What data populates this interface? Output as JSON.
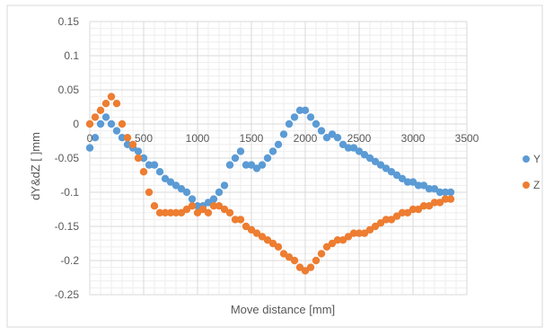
{
  "chart_data": {
    "type": "scatter",
    "xlabel": "Move distance [mm]",
    "ylabel": "dY&dZ [ ]mm",
    "xlim": [
      0,
      3500
    ],
    "ylim": [
      -0.25,
      0.15
    ],
    "x_ticks": [
      "0",
      "500",
      "1000",
      "1500",
      "2000",
      "2500",
      "3000",
      "3500"
    ],
    "y_ticks": [
      "0.15",
      "0.1",
      "0.05",
      "0",
      "-0.05",
      "-0.1",
      "-0.15",
      "-0.2",
      "-0.25"
    ],
    "x_tick_values": [
      0,
      500,
      1000,
      1500,
      2000,
      2500,
      3000,
      3500
    ],
    "y_tick_values": [
      0.15,
      0.1,
      0.05,
      0,
      -0.05,
      -0.1,
      -0.15,
      -0.2,
      -0.25
    ],
    "grid": true,
    "legend_position": "right",
    "series": [
      {
        "name": "Y",
        "color": "#5B9BD5",
        "x": [
          0,
          50,
          100,
          150,
          200,
          250,
          300,
          350,
          400,
          450,
          500,
          550,
          600,
          650,
          700,
          750,
          800,
          850,
          900,
          950,
          1000,
          1050,
          1100,
          1150,
          1200,
          1250,
          1300,
          1350,
          1400,
          1450,
          1500,
          1550,
          1600,
          1650,
          1700,
          1750,
          1800,
          1850,
          1900,
          1950,
          2000,
          2050,
          2100,
          2150,
          2200,
          2250,
          2300,
          2350,
          2400,
          2450,
          2500,
          2550,
          2600,
          2650,
          2700,
          2750,
          2800,
          2850,
          2900,
          2950,
          3000,
          3050,
          3100,
          3150,
          3200,
          3250,
          3300,
          3350
        ],
        "y": [
          -0.035,
          -0.02,
          0.0,
          0.01,
          0.0,
          -0.01,
          -0.02,
          -0.03,
          -0.035,
          -0.04,
          -0.05,
          -0.06,
          -0.06,
          -0.07,
          -0.08,
          -0.085,
          -0.09,
          -0.095,
          -0.1,
          -0.11,
          -0.12,
          -0.12,
          -0.115,
          -0.11,
          -0.1,
          -0.09,
          -0.06,
          -0.05,
          -0.04,
          -0.06,
          -0.06,
          -0.065,
          -0.06,
          -0.05,
          -0.04,
          -0.03,
          -0.015,
          0.0,
          0.01,
          0.02,
          0.02,
          0.01,
          0.0,
          -0.01,
          -0.02,
          -0.015,
          -0.02,
          -0.03,
          -0.035,
          -0.035,
          -0.04,
          -0.045,
          -0.05,
          -0.055,
          -0.06,
          -0.065,
          -0.07,
          -0.075,
          -0.08,
          -0.085,
          -0.085,
          -0.09,
          -0.09,
          -0.095,
          -0.095,
          -0.1,
          -0.1,
          -0.1
        ]
      },
      {
        "name": "Z",
        "color": "#ED7D31",
        "x": [
          0,
          50,
          100,
          150,
          200,
          250,
          300,
          350,
          400,
          450,
          500,
          550,
          600,
          650,
          700,
          750,
          800,
          850,
          900,
          950,
          1000,
          1050,
          1100,
          1150,
          1200,
          1250,
          1300,
          1350,
          1400,
          1450,
          1500,
          1550,
          1600,
          1650,
          1700,
          1750,
          1800,
          1850,
          1900,
          1950,
          2000,
          2050,
          2100,
          2150,
          2200,
          2250,
          2300,
          2350,
          2400,
          2450,
          2500,
          2550,
          2600,
          2650,
          2700,
          2750,
          2800,
          2850,
          2900,
          2950,
          3000,
          3050,
          3100,
          3150,
          3200,
          3250,
          3300,
          3350
        ],
        "y": [
          0.0,
          0.01,
          0.02,
          0.03,
          0.04,
          0.03,
          0.0,
          -0.02,
          -0.03,
          -0.05,
          -0.07,
          -0.1,
          -0.12,
          -0.13,
          -0.13,
          -0.13,
          -0.13,
          -0.13,
          -0.125,
          -0.12,
          -0.13,
          -0.125,
          -0.13,
          -0.12,
          -0.12,
          -0.125,
          -0.13,
          -0.14,
          -0.14,
          -0.15,
          -0.155,
          -0.16,
          -0.165,
          -0.17,
          -0.175,
          -0.18,
          -0.19,
          -0.195,
          -0.2,
          -0.21,
          -0.215,
          -0.21,
          -0.2,
          -0.19,
          -0.18,
          -0.175,
          -0.17,
          -0.17,
          -0.165,
          -0.16,
          -0.16,
          -0.16,
          -0.155,
          -0.15,
          -0.145,
          -0.14,
          -0.14,
          -0.135,
          -0.13,
          -0.13,
          -0.125,
          -0.125,
          -0.12,
          -0.12,
          -0.115,
          -0.115,
          -0.11,
          -0.11
        ]
      }
    ]
  }
}
